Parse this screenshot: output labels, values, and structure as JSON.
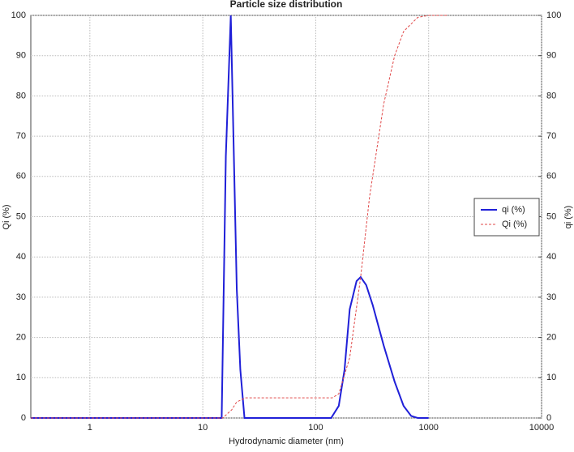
{
  "chart_data": {
    "type": "line",
    "title": "Particle size distribution",
    "xlabel": "Hydrodynamic diameter (nm)",
    "ylabel": "Qi (%)",
    "y2label": "qi (%)",
    "xscale": "log",
    "xlim": [
      0.3,
      10000
    ],
    "xticks": [
      1,
      10,
      100,
      1000,
      10000
    ],
    "ylim": [
      0,
      100
    ],
    "yticks": [
      0,
      10,
      20,
      30,
      40,
      50,
      60,
      70,
      80,
      90,
      100
    ],
    "y2lim": [
      0,
      100
    ],
    "y2ticks": [
      0,
      10,
      20,
      30,
      40,
      50,
      60,
      70,
      80,
      90,
      100
    ],
    "grid": true,
    "legend": "right",
    "series": [
      {
        "name": "qi (%)",
        "color": "#2020d8",
        "linestyle": "solid",
        "axis": "y2",
        "x": [
          0.3,
          14.7,
          16,
          17.7,
          20,
          21.5,
          23.4,
          137,
          160,
          180,
          200,
          230,
          250,
          280,
          320,
          400,
          500,
          600,
          700,
          800,
          1000
        ],
        "values": [
          0,
          0,
          65,
          100,
          32,
          12,
          0,
          0,
          3,
          12,
          27,
          34,
          35,
          33,
          28,
          18,
          9,
          3,
          0.5,
          0,
          0
        ]
      },
      {
        "name": "Qi (%)",
        "color": "#e04848",
        "linestyle": "dashed",
        "axis": "y",
        "x": [
          0.3,
          15,
          18,
          20,
          24,
          140,
          160,
          200,
          250,
          300,
          400,
          500,
          600,
          800,
          1000,
          1500
        ],
        "values": [
          0,
          0,
          2,
          4,
          5,
          5,
          6,
          15,
          35,
          55,
          78,
          90,
          96,
          99.5,
          100,
          100
        ]
      }
    ]
  }
}
